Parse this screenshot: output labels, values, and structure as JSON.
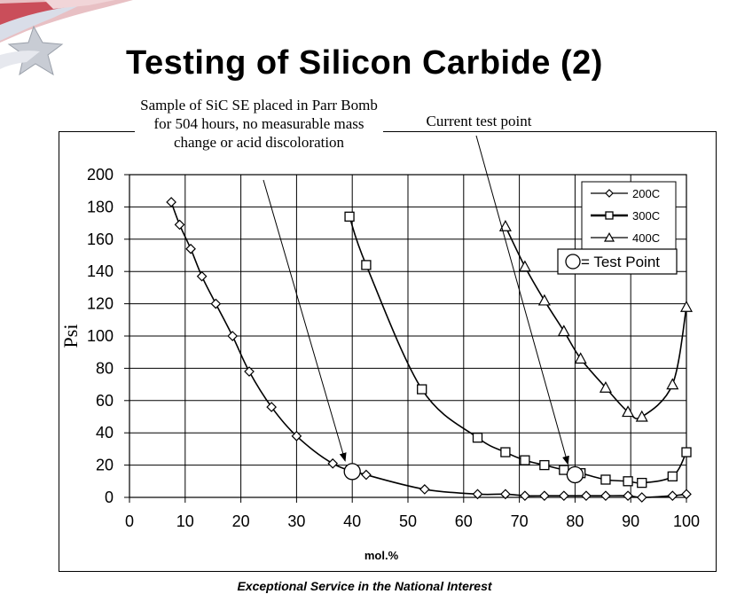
{
  "slide": {
    "title": "Testing of Silicon Carbide (2)",
    "footer": "Exceptional Service in the National Interest"
  },
  "annotations": [
    {
      "text": "Sample of SiC SE placed in Parr Bomb for 504 hours, no measurable mass change or acid discoloration",
      "points_to": {
        "x": 40,
        "y": 16
      }
    },
    {
      "text": "Current test point",
      "points_to": {
        "x": 80,
        "y": 14
      }
    }
  ],
  "chart_data": {
    "type": "scatter",
    "title": "",
    "xlabel": "mol.%",
    "ylabel": "Psi",
    "xlim": [
      0,
      100
    ],
    "ylim": [
      0,
      200
    ],
    "xticks": [
      0,
      10,
      20,
      30,
      40,
      50,
      60,
      70,
      80,
      90,
      100
    ],
    "yticks": [
      0,
      20,
      40,
      60,
      80,
      100,
      120,
      140,
      160,
      180,
      200
    ],
    "grid": true,
    "legend_position": "top-right",
    "series": [
      {
        "name": "200C",
        "marker": "diamond",
        "color": "#000000",
        "x": [
          7.5,
          9,
          11,
          13,
          15.5,
          18.5,
          21.5,
          25.5,
          30,
          36.5,
          42.5,
          53,
          62.5,
          67.5,
          71,
          74.5,
          78,
          82,
          85.5,
          89.5,
          92,
          97.5,
          100
        ],
        "y": [
          183,
          169,
          154,
          137,
          120,
          100,
          78,
          56,
          38,
          21,
          14,
          5,
          2,
          2,
          1,
          1,
          1,
          1,
          1,
          1,
          0,
          1,
          2
        ]
      },
      {
        "name": "300C",
        "marker": "square",
        "color": "#000000",
        "x": [
          39.5,
          42.5,
          52.5,
          62.5,
          67.5,
          71,
          74.5,
          78,
          81,
          85.5,
          89.5,
          92,
          97.5,
          100
        ],
        "y": [
          174,
          144,
          67,
          37,
          28,
          23,
          20,
          17,
          15,
          11,
          10,
          9,
          13,
          28
        ]
      },
      {
        "name": "400C",
        "marker": "triangle",
        "color": "#000000",
        "x": [
          67.5,
          71,
          74.5,
          78,
          81,
          85.5,
          89.5,
          92,
          97.5,
          100
        ],
        "y": [
          168,
          143,
          122,
          103,
          86,
          68,
          53,
          50,
          70,
          118
        ]
      }
    ],
    "test_points": {
      "legend_label": "= Test Point",
      "points": [
        {
          "x": 40,
          "y": 16
        },
        {
          "x": 80,
          "y": 14
        }
      ]
    }
  }
}
